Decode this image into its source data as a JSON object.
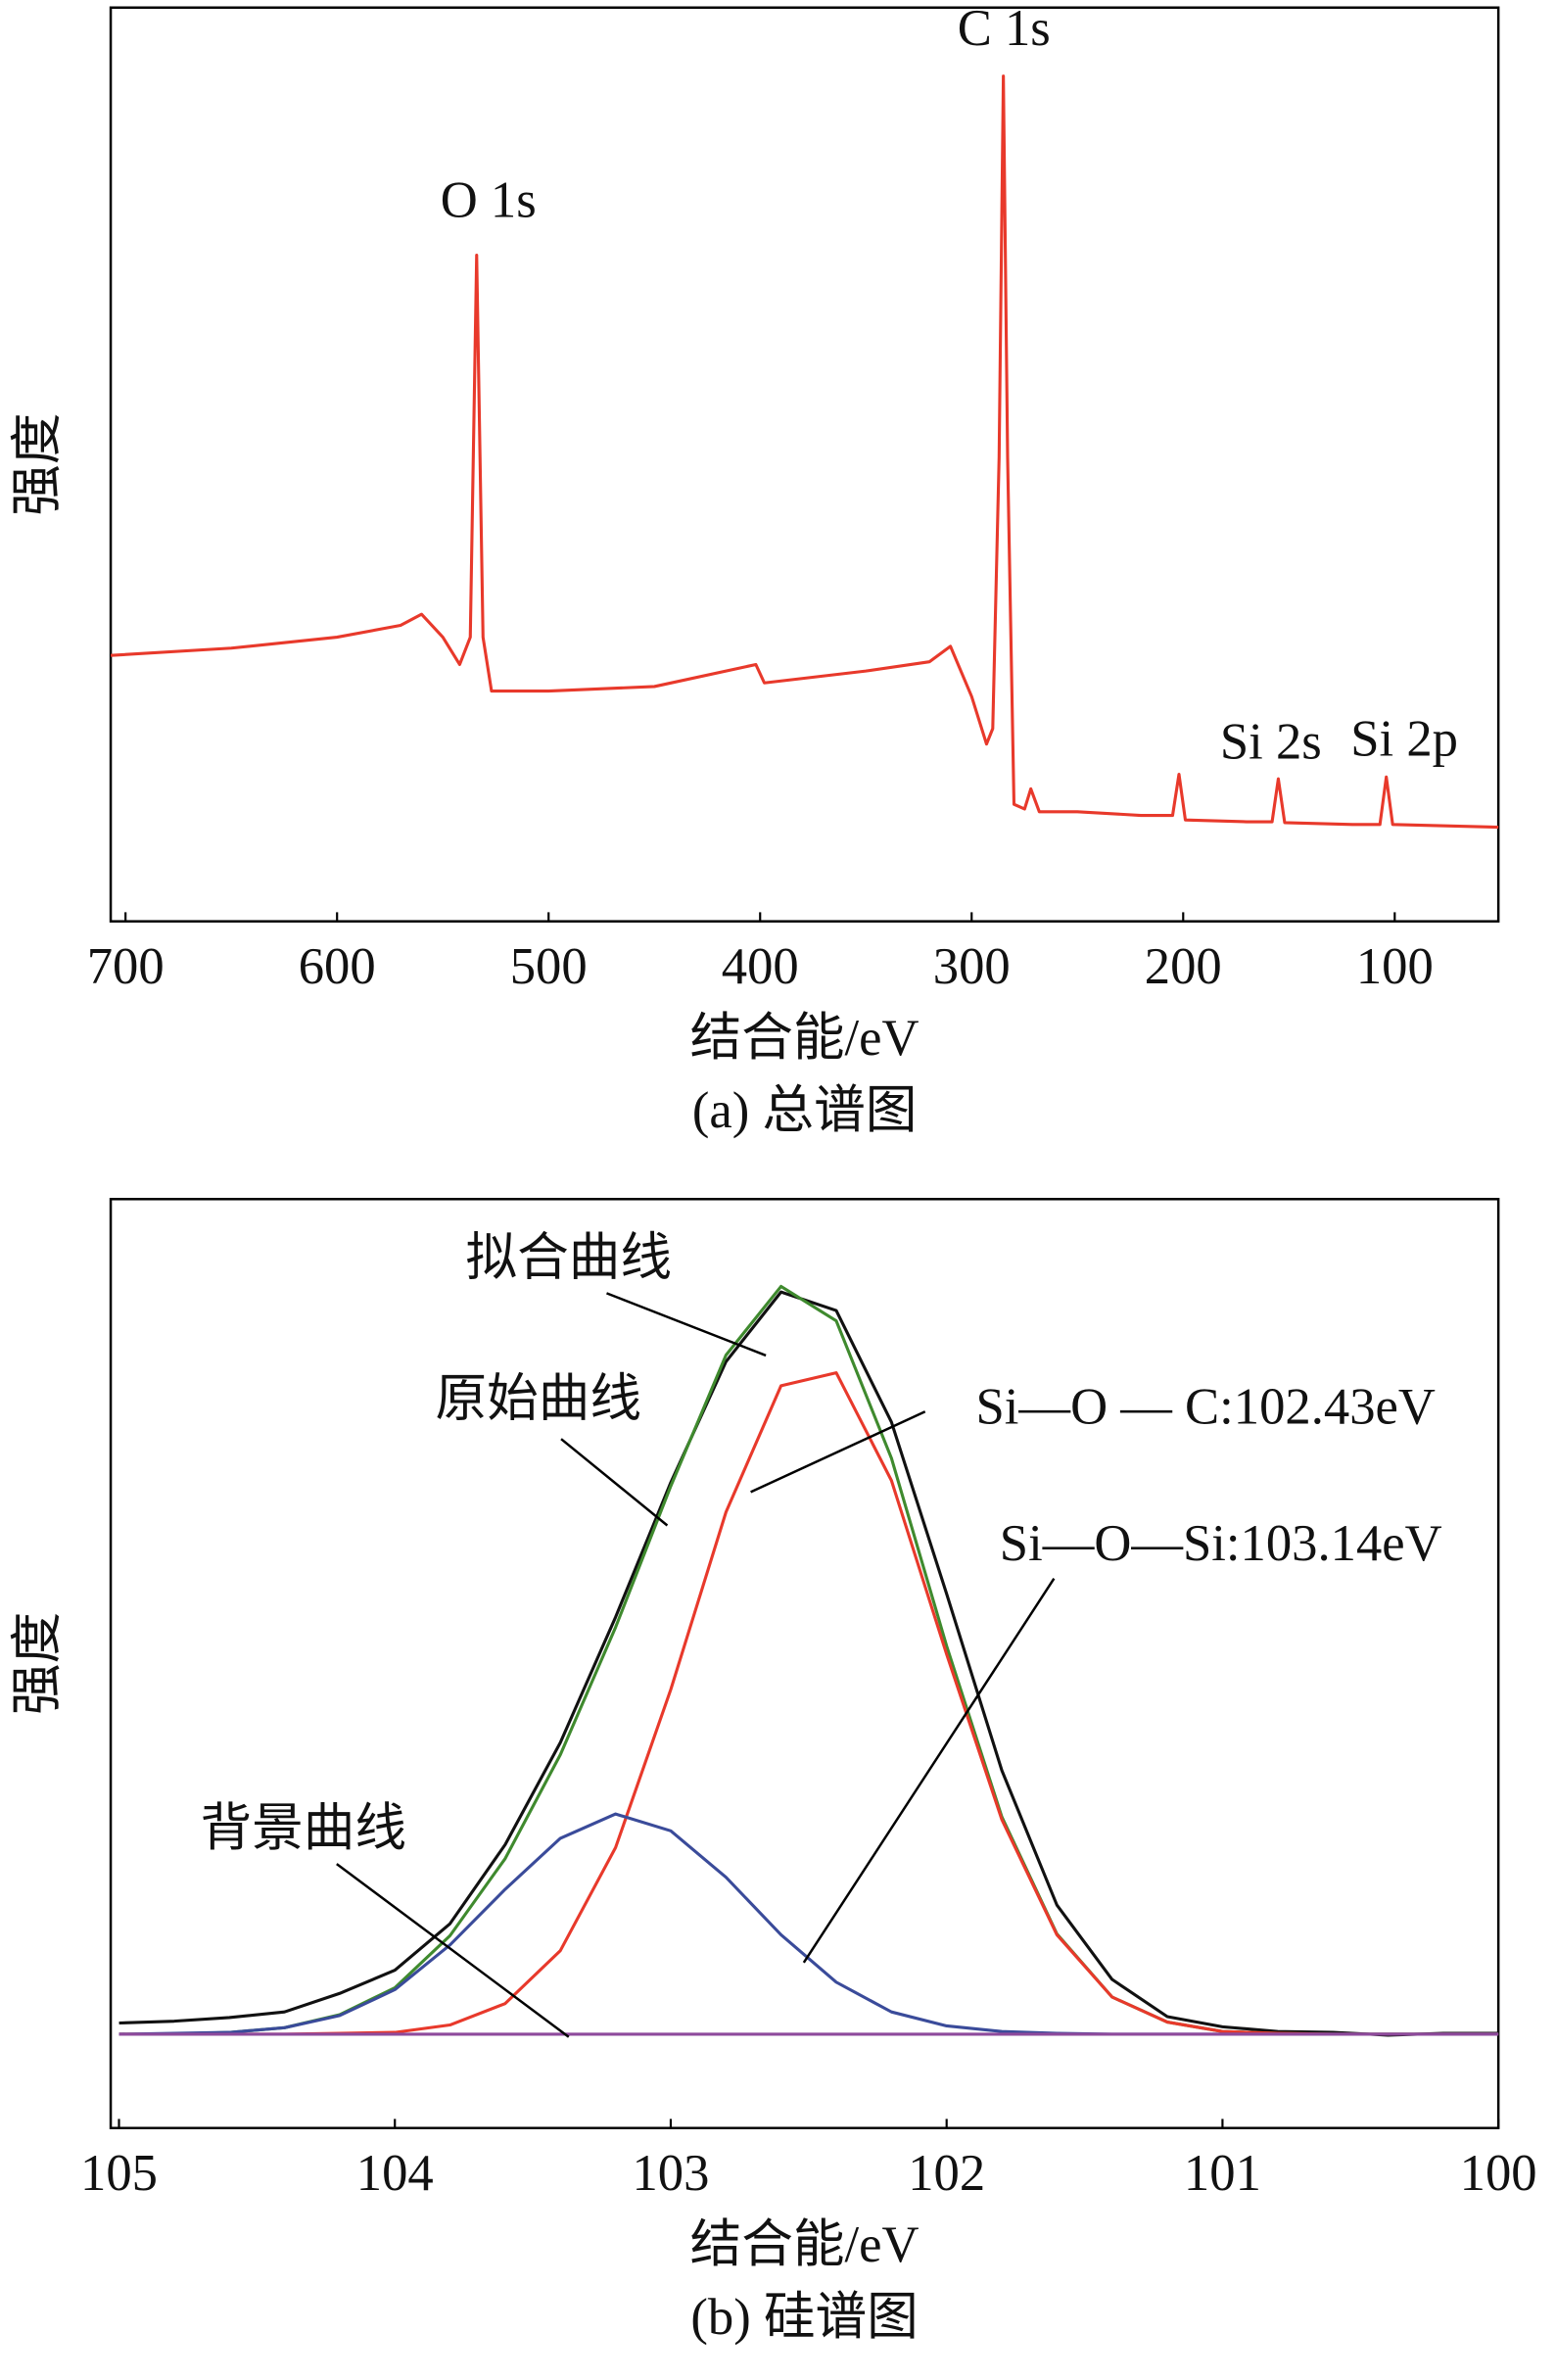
{
  "chart_data": [
    {
      "type": "line",
      "title": "(a) 总谱图",
      "x_label": "结合能/eV",
      "y_label": "强度",
      "xlim": [
        707,
        51
      ],
      "ylim": [
        0,
        100
      ],
      "xticks": [
        700,
        600,
        500,
        400,
        300,
        200,
        100
      ],
      "x": [
        707,
        650,
        600,
        570,
        560,
        550,
        542,
        537,
        534,
        531,
        527,
        500,
        450,
        402,
        398,
        350,
        320,
        310,
        300,
        293,
        290,
        287,
        285,
        283,
        280,
        275,
        272,
        268,
        250,
        220,
        205,
        202,
        199,
        170,
        158,
        155,
        152,
        120,
        107,
        104,
        101,
        51
      ],
      "series": [
        {
          "color": "#e8392b",
          "values": [
            29.1,
            29.9,
            31.1,
            32.4,
            33.6,
            31.1,
            28.1,
            31.1,
            72.9,
            31.1,
            25.2,
            25.2,
            25.7,
            28.1,
            26.1,
            27.4,
            28.4,
            30.1,
            24.6,
            19.4,
            21.1,
            50.8,
            92.5,
            50.8,
            12.8,
            12.3,
            14.5,
            12.0,
            12.0,
            11.6,
            11.6,
            16.1,
            11.1,
            10.9,
            10.9,
            15.6,
            10.8,
            10.6,
            10.6,
            15.8,
            10.6,
            10.3
          ]
        }
      ],
      "annotations": [
        "O 1s",
        "C 1s",
        "Si 2s",
        "Si 2p"
      ]
    },
    {
      "type": "line",
      "title": "(b) 硅谱图",
      "x_label": "结合能/eV",
      "y_label": "强度",
      "xlim": [
        105.03,
        100
      ],
      "ylim": [
        0,
        100
      ],
      "xticks": [
        105,
        104,
        103,
        102,
        101,
        100
      ],
      "x": [
        105.0,
        104.8,
        104.6,
        104.4,
        104.2,
        104.0,
        103.8,
        103.6,
        103.4,
        103.2,
        103.0,
        102.8,
        102.6,
        102.4,
        102.2,
        102.0,
        101.8,
        101.6,
        101.4,
        101.2,
        101.0,
        100.8,
        100.6,
        100.4,
        100.2,
        100.0
      ],
      "series": [
        {
          "name": "原始曲线",
          "color": "#111111",
          "values": [
            11.3,
            11.5,
            11.9,
            12.5,
            14.5,
            17.0,
            22.0,
            30.5,
            41.5,
            55.0,
            69.5,
            82.5,
            90.0,
            88.0,
            76.0,
            57.5,
            38.5,
            24.0,
            16.0,
            12.0,
            10.9,
            10.4,
            10.3,
            10.0,
            10.2,
            10.2
          ]
        },
        {
          "name": "拟合曲线",
          "color": "#3f8a2e",
          "values": [
            10.1,
            10.1,
            10.3,
            10.8,
            12.2,
            15.1,
            20.7,
            29.0,
            40.2,
            53.9,
            69.1,
            83.2,
            90.6,
            86.9,
            72.1,
            51.9,
            33.5,
            20.9,
            14.1,
            11.4,
            10.4,
            10.2,
            10.1,
            10.1,
            10.1,
            10.1
          ]
        },
        {
          "name": "Si—O — C:102.43eV",
          "color": "#e8392b",
          "values": [
            10.1,
            10.1,
            10.1,
            10.1,
            10.2,
            10.3,
            11.1,
            13.4,
            19.1,
            30.2,
            47.2,
            66.3,
            79.9,
            81.3,
            69.7,
            51.0,
            33.2,
            20.8,
            14.1,
            11.4,
            10.4,
            10.2,
            10.1,
            10.1,
            10.1,
            10.1
          ]
        },
        {
          "name": "Si—O—Si:103.14eV",
          "color": "#3a4b9a",
          "values": [
            10.1,
            10.2,
            10.3,
            10.8,
            12.1,
            14.9,
            19.7,
            25.7,
            31.2,
            33.8,
            32.0,
            27.0,
            20.8,
            15.7,
            12.5,
            11.0,
            10.4,
            10.2,
            10.1,
            10.1,
            10.1,
            10.1,
            10.1,
            10.1,
            10.1,
            10.1
          ]
        },
        {
          "name": "背景曲线",
          "color": "#8e4a9c",
          "values": [
            10.1,
            10.1,
            10.1,
            10.1,
            10.1,
            10.1,
            10.1,
            10.1,
            10.1,
            10.1,
            10.1,
            10.1,
            10.1,
            10.1,
            10.1,
            10.1,
            10.1,
            10.1,
            10.1,
            10.1,
            10.1,
            10.1,
            10.1,
            10.1,
            10.1,
            10.1
          ]
        }
      ]
    }
  ]
}
